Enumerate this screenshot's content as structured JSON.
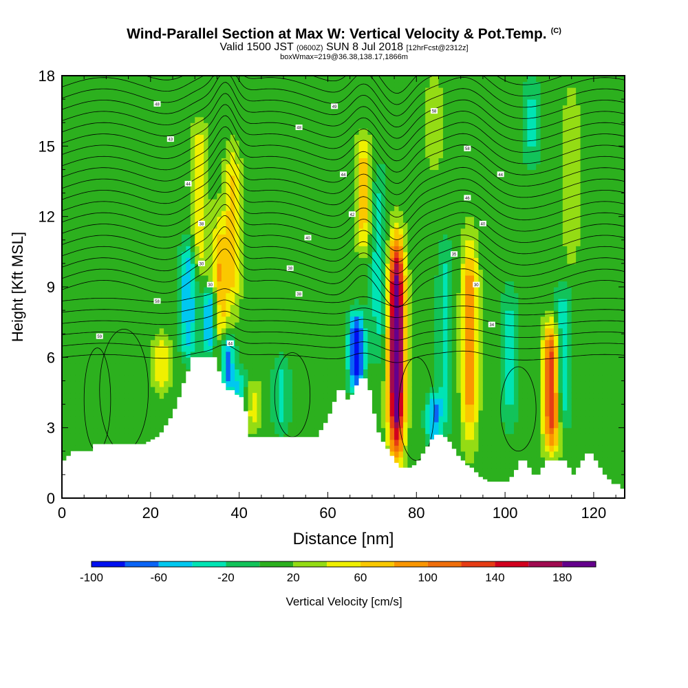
{
  "header": {
    "title": "Wind-Parallel Section at Max W: Vertical Velocity & Pot.Temp.",
    "copyright": "(C)",
    "valid_a": "Valid 1500 JST",
    "valid_b": "(0600Z)",
    "valid_c": "SUN 8 Jul 2018",
    "valid_d": "[12hrFcst@2312z]",
    "box_info": "boxWmax=219@36.38,138.17,1866m"
  },
  "chart_data": {
    "type": "heatmap",
    "xlabel": "Distance [nm]",
    "ylabel": "Height [Kft MSL]",
    "xlim": [
      0,
      127
    ],
    "ylim": [
      0,
      18
    ],
    "x_ticks": [
      0,
      20,
      40,
      60,
      80,
      100,
      120
    ],
    "y_ticks": [
      0,
      3,
      6,
      9,
      12,
      15,
      18
    ],
    "background_vv": 10,
    "updrafts": [
      {
        "x": 22.5,
        "ybase": 4.5,
        "ytop": 7.0,
        "peak": 60
      },
      {
        "x": 31.0,
        "ybase": 9.5,
        "ytop": 16.0,
        "peak": 60
      },
      {
        "x": 35.5,
        "ybase": 4.0,
        "ytop": 12.0,
        "peak": 80
      },
      {
        "x": 38.5,
        "ybase": 8.0,
        "ytop": 15.0,
        "peak": 70
      },
      {
        "x": 43.0,
        "ybase": 2.8,
        "ytop": 5.0,
        "peak": 50
      },
      {
        "x": 68.0,
        "ybase": 10.5,
        "ytop": 15.5,
        "peak": 70
      },
      {
        "x": 75.5,
        "ybase": 1.8,
        "ytop": 11.0,
        "peak": 219
      },
      {
        "x": 92.0,
        "ybase": 2.5,
        "ytop": 11.0,
        "peak": 100
      },
      {
        "x": 110.5,
        "ybase": 2.0,
        "ytop": 7.5,
        "peak": 140
      },
      {
        "x": 115.0,
        "ybase": 10.0,
        "ytop": 17.5,
        "peak": 40
      },
      {
        "x": 84.0,
        "ybase": 14.0,
        "ytop": 18.0,
        "peak": 40
      }
    ],
    "downdrafts": [
      {
        "x": 28.5,
        "ybase": 6.0,
        "ytop": 11.0,
        "peak": -60
      },
      {
        "x": 33.5,
        "ybase": 6.0,
        "ytop": 9.0,
        "peak": -70
      },
      {
        "x": 37.0,
        "ybase": 4.5,
        "ytop": 7.0,
        "peak": -90
      },
      {
        "x": 40.0,
        "ybase": 3.0,
        "ytop": 5.5,
        "peak": -40
      },
      {
        "x": 49.5,
        "ybase": 2.7,
        "ytop": 6.0,
        "peak": -30
      },
      {
        "x": 66.5,
        "ybase": 4.5,
        "ytop": 8.0,
        "peak": -95
      },
      {
        "x": 71.5,
        "ybase": 6.0,
        "ytop": 14.0,
        "peak": -35
      },
      {
        "x": 84.0,
        "ybase": 2.2,
        "ytop": 4.5,
        "peak": -60
      },
      {
        "x": 86.5,
        "ybase": 3.0,
        "ytop": 11.0,
        "peak": -30
      },
      {
        "x": 101.0,
        "ybase": 3.0,
        "ytop": 9.0,
        "peak": -30
      },
      {
        "x": 113.0,
        "ybase": 3.0,
        "ytop": 9.0,
        "peak": -45
      },
      {
        "x": 106.0,
        "ybase": 14.0,
        "ytop": 18.0,
        "peak": -25
      }
    ],
    "terrain": {
      "x": [
        0,
        1,
        2,
        6,
        7,
        18,
        19,
        20,
        21,
        22,
        23,
        24,
        25,
        26,
        27,
        28,
        29,
        34,
        35,
        36,
        37,
        38,
        39,
        40,
        41,
        41.5,
        42,
        43,
        44,
        57,
        58,
        59,
        60,
        61,
        62,
        63,
        64,
        65,
        66,
        67,
        68,
        69,
        70,
        71,
        72,
        73,
        74,
        75,
        76,
        77,
        78,
        79,
        80,
        81,
        82,
        83,
        84,
        85,
        86,
        87,
        88,
        89,
        90,
        91,
        92,
        93,
        94,
        95,
        96,
        97,
        98,
        99,
        100,
        101,
        102,
        103,
        104,
        105,
        106,
        107,
        108,
        109,
        110,
        111,
        112,
        113,
        114,
        115,
        116,
        117,
        118,
        119,
        120,
        121,
        122,
        123,
        124,
        125,
        126,
        127
      ],
      "h": [
        1.6,
        1.8,
        2.0,
        2.0,
        2.3,
        2.3,
        2.4,
        2.5,
        2.6,
        2.8,
        3.1,
        3.4,
        3.8,
        4.3,
        4.9,
        5.4,
        6.0,
        6.0,
        5.4,
        4.9,
        4.6,
        4.6,
        4.4,
        4.3,
        3.7,
        3.0,
        2.6,
        2.6,
        2.6,
        2.6,
        2.9,
        3.2,
        3.6,
        4.1,
        4.6,
        4.6,
        4.2,
        4.4,
        4.8,
        5.1,
        5.1,
        4.6,
        3.6,
        2.8,
        2.4,
        2.1,
        1.8,
        1.5,
        1.3,
        1.3,
        1.3,
        1.4,
        1.6,
        1.9,
        2.2,
        2.5,
        2.7,
        2.7,
        2.6,
        2.4,
        2.1,
        1.8,
        1.6,
        1.4,
        1.3,
        1.1,
        0.9,
        0.8,
        0.7,
        0.7,
        0.7,
        0.7,
        0.7,
        0.9,
        1.2,
        1.6,
        1.6,
        1.3,
        1.0,
        1.0,
        1.3,
        1.6,
        1.6,
        1.6,
        1.6,
        1.6,
        1.3,
        1.0,
        1.3,
        1.6,
        1.9,
        1.9,
        1.6,
        1.3,
        1.0,
        0.8,
        0.6,
        0.6,
        0.4,
        0.3
      ]
    },
    "theta_labels": [
      {
        "x": 8.5,
        "y": 6.9,
        "text": "59"
      },
      {
        "x": 21.5,
        "y": 8.4,
        "text": "58"
      },
      {
        "x": 33.5,
        "y": 9.1,
        "text": "30"
      },
      {
        "x": 31.5,
        "y": 10.0,
        "text": "30"
      },
      {
        "x": 31.5,
        "y": 11.7,
        "text": "38"
      },
      {
        "x": 28.5,
        "y": 13.4,
        "text": "44"
      },
      {
        "x": 24.5,
        "y": 15.3,
        "text": "43"
      },
      {
        "x": 21.5,
        "y": 16.8,
        "text": "48"
      },
      {
        "x": 38.0,
        "y": 6.6,
        "text": "44"
      },
      {
        "x": 53.5,
        "y": 8.7,
        "text": "38"
      },
      {
        "x": 51.5,
        "y": 9.8,
        "text": "38"
      },
      {
        "x": 55.5,
        "y": 11.1,
        "text": "40"
      },
      {
        "x": 53.5,
        "y": 15.8,
        "text": "48"
      },
      {
        "x": 61.5,
        "y": 16.7,
        "text": "49"
      },
      {
        "x": 63.5,
        "y": 13.8,
        "text": "44"
      },
      {
        "x": 65.5,
        "y": 12.1,
        "text": "42"
      },
      {
        "x": 84.0,
        "y": 16.5,
        "text": "58"
      },
      {
        "x": 91.5,
        "y": 14.9,
        "text": "58"
      },
      {
        "x": 99.0,
        "y": 13.8,
        "text": "44"
      },
      {
        "x": 91.5,
        "y": 12.8,
        "text": "46"
      },
      {
        "x": 95.0,
        "y": 11.7,
        "text": "40"
      },
      {
        "x": 88.5,
        "y": 10.4,
        "text": "35"
      },
      {
        "x": 93.5,
        "y": 9.1,
        "text": "30"
      },
      {
        "x": 97.0,
        "y": 7.4,
        "text": "34"
      }
    ],
    "colorbar": {
      "levels": [
        -100,
        -80,
        -60,
        -40,
        -20,
        0,
        20,
        40,
        60,
        80,
        100,
        120,
        140,
        160,
        180,
        200
      ],
      "colors": [
        "#0010f0",
        "#0a64f5",
        "#00c8f0",
        "#00e4b4",
        "#12c35a",
        "#2cb01e",
        "#94dc14",
        "#f0f000",
        "#fac800",
        "#fa9600",
        "#f06e0a",
        "#e63c14",
        "#d2001e",
        "#a00a50",
        "#64008c"
      ],
      "tick_values": [
        -100,
        -60,
        -20,
        20,
        60,
        100,
        140,
        180
      ],
      "tick_labels": [
        "-100",
        "-60",
        "-20",
        "20",
        "60",
        "100",
        "140",
        "180"
      ],
      "label": "Vertical Velocity [cm/s]"
    },
    "grid": false,
    "contour_color": "#000000"
  }
}
